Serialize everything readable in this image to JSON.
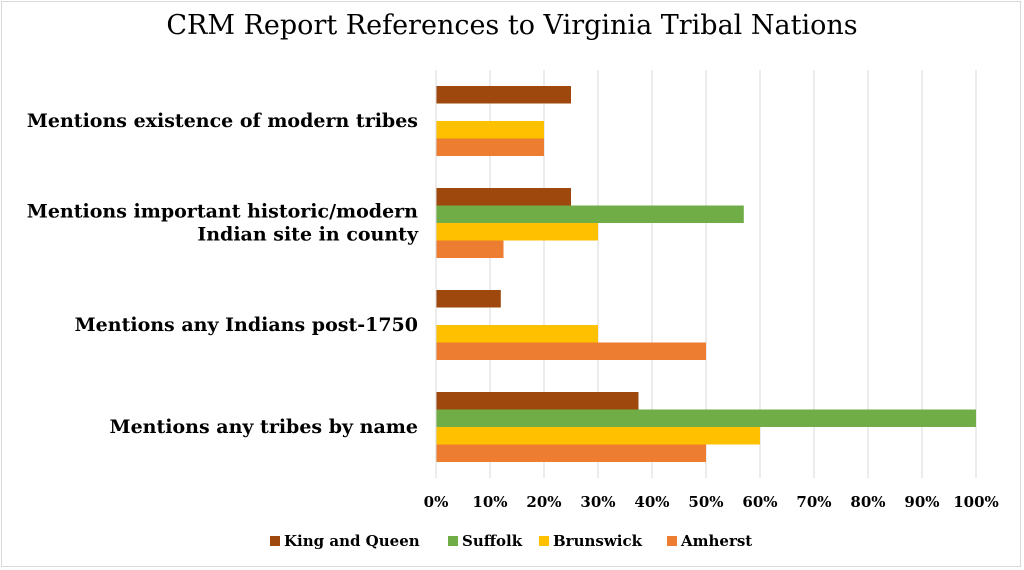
{
  "chart_data": {
    "type": "bar",
    "orientation": "horizontal",
    "title": "CRM Report References to Virginia Tribal Nations",
    "categories": [
      [
        "Mentions existence of modern tribes"
      ],
      [
        "Mentions important historic/modern",
        "Indian site in county"
      ],
      [
        "Mentions any Indians post-1750"
      ],
      [
        "Mentions any tribes by name"
      ]
    ],
    "series": [
      {
        "name": "King and Queen",
        "color": "#9e480e",
        "values": [
          25,
          25,
          12,
          37.5
        ]
      },
      {
        "name": "Suffolk",
        "color": "#70ad47",
        "values": [
          0,
          57,
          0,
          100
        ]
      },
      {
        "name": "Brunswick",
        "color": "#ffc000",
        "values": [
          20,
          30,
          30,
          60
        ]
      },
      {
        "name": "Amherst",
        "color": "#ed7d31",
        "values": [
          20,
          12.5,
          50,
          50
        ]
      }
    ],
    "xlim": [
      0,
      100
    ],
    "xticks": [
      "0%",
      "10%",
      "20%",
      "30%",
      "40%",
      "50%",
      "60%",
      "70%",
      "80%",
      "90%",
      "100%"
    ],
    "grid": true,
    "legend": "bottom"
  }
}
